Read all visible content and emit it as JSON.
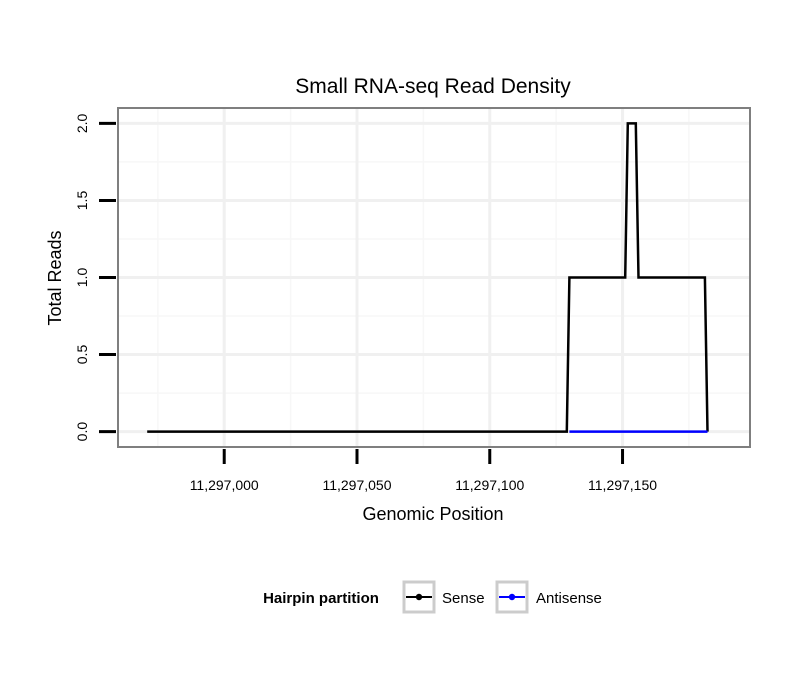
{
  "chart_data": {
    "type": "line",
    "title": "Small RNA-seq Read Density",
    "xlabel": "Genomic Position",
    "ylabel": "Total Reads",
    "xlim": [
      11296960,
      11297198
    ],
    "ylim": [
      -0.1,
      2.1
    ],
    "x_ticks": [
      11297000,
      11297050,
      11297100,
      11297150
    ],
    "x_tick_labels": [
      "11,297,000",
      "11,297,050",
      "11,297,100",
      "11,297,150"
    ],
    "y_ticks": [
      0,
      0.5,
      1,
      1.5,
      2
    ],
    "y_tick_labels": [
      "0.0",
      "0.5",
      "1.0",
      "1.5",
      "2.0"
    ],
    "grid": true,
    "legend": {
      "title": "Hairpin partition",
      "position": "bottom"
    },
    "series": [
      {
        "name": "Sense",
        "color": "#000000",
        "x": [
          11296971,
          11297129,
          11297130,
          11297151,
          11297152,
          11297155,
          11297156,
          11297181,
          11297182
        ],
        "y": [
          0,
          0,
          1,
          1,
          2,
          2,
          1,
          1,
          0
        ]
      },
      {
        "name": "Antisense",
        "color": "#0000ff",
        "x": [
          11297130,
          11297182
        ],
        "y": [
          0,
          0
        ]
      }
    ]
  }
}
